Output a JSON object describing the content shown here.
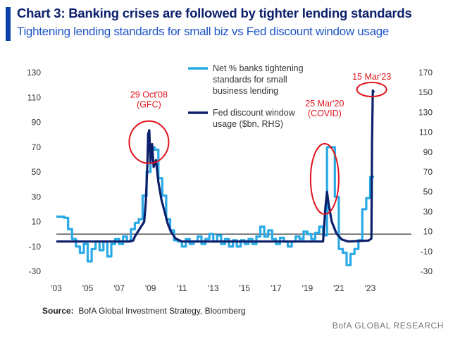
{
  "header": {
    "title": "Chart 3: Banking crises are followed by tighter lending standards",
    "subtitle": "Tightening lending standards for small biz vs Fed discount window usage"
  },
  "footer": {
    "source_label": "Source:",
    "source_text": "BofA Global Investment Strategy, Bloomberg",
    "credit": "BofA GLOBAL RESEARCH"
  },
  "colors": {
    "accent": "#0a3fa8",
    "series_light": "#29a9e6",
    "series_dark": "#0b1f6b",
    "annotation": "#e0141e"
  },
  "chart_data": {
    "type": "line",
    "x_ticks": [
      "'03",
      "'05",
      "'07",
      "'09",
      "'11",
      "'13",
      "'15",
      "'17",
      "'19",
      "'21",
      "'23"
    ],
    "x_range": [
      2003,
      2025
    ],
    "y_left": {
      "ticks": [
        "130",
        "110",
        "90",
        "70",
        "50",
        "30",
        "10",
        "-10",
        "-30"
      ],
      "range": [
        -30,
        130
      ]
    },
    "y_right": {
      "ticks": [
        "170",
        "150",
        "130",
        "110",
        "90",
        "70",
        "50",
        "30",
        "10",
        "-10",
        "-30"
      ],
      "range": [
        -30,
        170
      ]
    },
    "zero_line_left": 0,
    "series": [
      {
        "name": "Net % banks tightening standards for small business lending",
        "legend_lines": [
          "Net % banks tightening",
          "standards for small",
          "business lending"
        ],
        "axis": "left",
        "color": "#29a9e6",
        "points": [
          [
            2003.0,
            14
          ],
          [
            2003.5,
            13
          ],
          [
            2003.75,
            4
          ],
          [
            2004.0,
            -4
          ],
          [
            2004.25,
            -10
          ],
          [
            2004.5,
            -15
          ],
          [
            2004.75,
            -8
          ],
          [
            2005.0,
            -22
          ],
          [
            2005.25,
            -12
          ],
          [
            2005.5,
            -6
          ],
          [
            2005.75,
            -13
          ],
          [
            2006.0,
            -6
          ],
          [
            2006.25,
            -18
          ],
          [
            2006.5,
            -8
          ],
          [
            2006.75,
            -4
          ],
          [
            2007.0,
            -8
          ],
          [
            2007.25,
            -2
          ],
          [
            2007.5,
            -6
          ],
          [
            2007.75,
            4
          ],
          [
            2008.0,
            9
          ],
          [
            2008.25,
            12
          ],
          [
            2008.5,
            31
          ],
          [
            2008.75,
            50
          ],
          [
            2009.0,
            70
          ],
          [
            2009.25,
            68
          ],
          [
            2009.5,
            45
          ],
          [
            2009.75,
            31
          ],
          [
            2010.0,
            12
          ],
          [
            2010.25,
            3
          ],
          [
            2010.5,
            -5
          ],
          [
            2010.75,
            -6
          ],
          [
            2011.0,
            -10
          ],
          [
            2011.25,
            -4
          ],
          [
            2011.5,
            -8
          ],
          [
            2011.75,
            -6
          ],
          [
            2012.0,
            -2
          ],
          [
            2012.25,
            -8
          ],
          [
            2012.5,
            -4
          ],
          [
            2012.75,
            0
          ],
          [
            2013.0,
            -6
          ],
          [
            2013.25,
            -1
          ],
          [
            2013.5,
            -8
          ],
          [
            2013.75,
            -4
          ],
          [
            2014.0,
            -10
          ],
          [
            2014.25,
            -5
          ],
          [
            2014.5,
            -10
          ],
          [
            2014.75,
            -5
          ],
          [
            2015.0,
            -8
          ],
          [
            2015.25,
            -4
          ],
          [
            2015.5,
            -8
          ],
          [
            2015.75,
            -2
          ],
          [
            2016.0,
            6
          ],
          [
            2016.25,
            -2
          ],
          [
            2016.5,
            3
          ],
          [
            2016.75,
            -4
          ],
          [
            2017.0,
            -8
          ],
          [
            2017.25,
            -3
          ],
          [
            2017.5,
            -6
          ],
          [
            2017.75,
            -10
          ],
          [
            2018.0,
            -6
          ],
          [
            2018.25,
            -2
          ],
          [
            2018.5,
            -4
          ],
          [
            2018.75,
            2
          ],
          [
            2019.0,
            0
          ],
          [
            2019.25,
            -4
          ],
          [
            2019.5,
            1
          ],
          [
            2019.75,
            6
          ],
          [
            2020.0,
            -1
          ],
          [
            2020.25,
            70
          ],
          [
            2020.5,
            70
          ],
          [
            2020.75,
            30
          ],
          [
            2021.0,
            -12
          ],
          [
            2021.25,
            -15
          ],
          [
            2021.5,
            -25
          ],
          [
            2021.75,
            -16
          ],
          [
            2022.0,
            -12
          ],
          [
            2022.25,
            -5
          ],
          [
            2022.5,
            20
          ],
          [
            2022.75,
            29
          ],
          [
            2023.0,
            46
          ],
          [
            2023.25,
            46
          ]
        ]
      },
      {
        "name": "Fed discount window usage ($bn, RHS)",
        "legend_lines": [
          "Fed discount window",
          "usage ($bn, RHS)"
        ],
        "axis": "right",
        "color": "#0b1f6b",
        "points": [
          [
            2003.0,
            0
          ],
          [
            2007.6,
            0
          ],
          [
            2007.9,
            1
          ],
          [
            2008.0,
            5
          ],
          [
            2008.2,
            10
          ],
          [
            2008.4,
            15
          ],
          [
            2008.6,
            20
          ],
          [
            2008.7,
            40
          ],
          [
            2008.8,
            78
          ],
          [
            2008.85,
            108
          ],
          [
            2008.92,
            112
          ],
          [
            2009.0,
            80
          ],
          [
            2009.1,
            98
          ],
          [
            2009.2,
            75
          ],
          [
            2009.35,
            82
          ],
          [
            2009.5,
            60
          ],
          [
            2009.7,
            42
          ],
          [
            2009.9,
            30
          ],
          [
            2010.1,
            18
          ],
          [
            2010.3,
            10
          ],
          [
            2010.6,
            3
          ],
          [
            2011.0,
            0
          ],
          [
            2020.0,
            0
          ],
          [
            2020.15,
            35
          ],
          [
            2020.25,
            50
          ],
          [
            2020.35,
            38
          ],
          [
            2020.55,
            20
          ],
          [
            2020.85,
            8
          ],
          [
            2021.2,
            2
          ],
          [
            2021.6,
            0
          ],
          [
            2022.9,
            1
          ],
          [
            2023.08,
            3
          ],
          [
            2023.12,
            100
          ],
          [
            2023.17,
            152
          ],
          [
            2023.25,
            150
          ]
        ]
      }
    ],
    "annotations": [
      {
        "label_lines": [
          "29 Oct'08",
          "(GFC)"
        ],
        "at": [
          2008.9,
          100
        ],
        "axis": "right"
      },
      {
        "label_lines": [
          "25 Mar'20",
          "(COVID)"
        ],
        "at": [
          2020.1,
          63
        ],
        "axis": "right"
      },
      {
        "label_lines": [
          "15 Mar'23"
        ],
        "at": [
          2023.1,
          153
        ],
        "axis": "right"
      }
    ]
  }
}
